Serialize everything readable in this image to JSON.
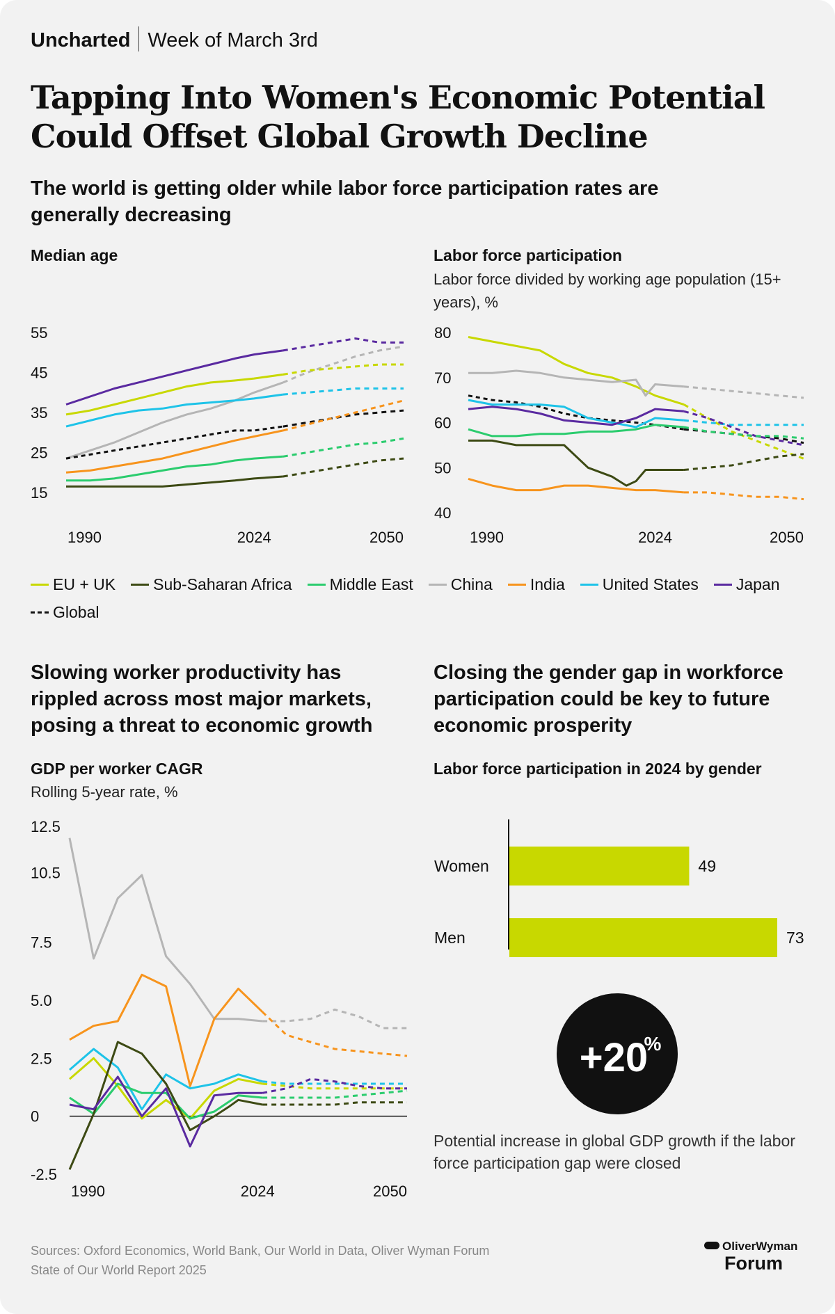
{
  "header": {
    "brand": "Uncharted",
    "week": "Week of March 3rd"
  },
  "title": "Tapping Into Women's Economic Potential Could Offset Global Growth Decline",
  "section1": {
    "subtitle": "The world is getting older while labor force participation rates are generally decreasing"
  },
  "section2": {
    "subtitle": "Slowing worker productivity has rippled across most major markets, posing a threat to economic growth"
  },
  "section3": {
    "subtitle": "Closing the gender gap in workforce participation could be key to future economic prosperity",
    "big_stat": "+20%",
    "big_stat_num": "+20",
    "big_stat_unit": "%",
    "stat_caption": "Potential increase in global GDP growth if the labor force participation gap were closed"
  },
  "legend": [
    {
      "name": "EU + UK",
      "color": "#c8d800",
      "dashed": false
    },
    {
      "name": "Sub-Saharan Africa",
      "color": "#3d4a14",
      "dashed": false
    },
    {
      "name": "Middle East",
      "color": "#2bcc6e",
      "dashed": false
    },
    {
      "name": "China",
      "color": "#b5b5b5",
      "dashed": false
    },
    {
      "name": "India",
      "color": "#f7941d",
      "dashed": false
    },
    {
      "name": "United States",
      "color": "#1ec3e8",
      "dashed": false
    },
    {
      "name": "Japan",
      "color": "#5a2aa0",
      "dashed": false
    },
    {
      "name": "Global",
      "color": "#111111",
      "dashed": true
    }
  ],
  "sources": {
    "line1": "Sources: Oxford Economics, World Bank, Our World in Data, Oliver Wyman Forum",
    "line2": "State of Our World Report 2025"
  },
  "logo": {
    "line1": "OliverWyman",
    "line2": "Forum"
  },
  "chart_data": [
    {
      "id": "median_age",
      "type": "line",
      "title": "Median age",
      "subtitle": "",
      "ylim": [
        15,
        55
      ],
      "yticks": [
        15,
        25,
        35,
        45,
        55
      ],
      "xlim": [
        1985,
        2055
      ],
      "xticks": [
        1990,
        2024,
        2050
      ],
      "forecast_from": 2030,
      "series": [
        {
          "name": "Japan",
          "color": "#5a2aa0",
          "x": [
            1985,
            1990,
            1995,
            2000,
            2005,
            2010,
            2015,
            2020,
            2024,
            2030,
            2035,
            2040,
            2045,
            2050,
            2055
          ],
          "values": [
            37,
            39,
            41,
            42.5,
            44,
            45.5,
            47,
            48.5,
            49.5,
            50.5,
            51.5,
            52.5,
            53.5,
            52.5,
            52.5
          ]
        },
        {
          "name": "China",
          "color": "#b5b5b5",
          "x": [
            1985,
            1990,
            1995,
            2000,
            2005,
            2010,
            2015,
            2020,
            2024,
            2030,
            2035,
            2040,
            2045,
            2050,
            2055
          ],
          "values": [
            23.5,
            25.5,
            27.5,
            30,
            32.5,
            34.5,
            36,
            38,
            40,
            42.5,
            45,
            47,
            49,
            50.5,
            51.5
          ]
        },
        {
          "name": "EU + UK",
          "color": "#c8d800",
          "x": [
            1985,
            1990,
            1995,
            2000,
            2005,
            2010,
            2015,
            2020,
            2024,
            2030,
            2035,
            2040,
            2045,
            2050,
            2055
          ],
          "values": [
            34.5,
            35.5,
            37,
            38.5,
            40,
            41.5,
            42.5,
            43,
            43.5,
            44.5,
            45.5,
            46,
            46.5,
            47,
            47
          ]
        },
        {
          "name": "United States",
          "color": "#1ec3e8",
          "x": [
            1985,
            1990,
            1995,
            2000,
            2005,
            2010,
            2015,
            2020,
            2024,
            2030,
            2035,
            2040,
            2045,
            2050,
            2055
          ],
          "values": [
            31.5,
            33,
            34.5,
            35.5,
            36,
            37,
            37.5,
            38,
            38.5,
            39.5,
            40,
            40.5,
            41,
            41,
            41
          ]
        },
        {
          "name": "Global",
          "color": "#111111",
          "x": [
            1985,
            1990,
            1995,
            2000,
            2005,
            2010,
            2015,
            2020,
            2024,
            2030,
            2035,
            2040,
            2045,
            2050,
            2055
          ],
          "values": [
            23.5,
            24.5,
            25.5,
            26.5,
            27.5,
            28.5,
            29.5,
            30.5,
            30.5,
            31.5,
            32.5,
            33.5,
            34.5,
            35,
            35.5
          ]
        },
        {
          "name": "India",
          "color": "#f7941d",
          "x": [
            1985,
            1990,
            1995,
            2000,
            2005,
            2010,
            2015,
            2020,
            2024,
            2030,
            2035,
            2040,
            2045,
            2050,
            2055
          ],
          "values": [
            20,
            20.5,
            21.5,
            22.5,
            23.5,
            25,
            26.5,
            28,
            29,
            30.5,
            32,
            33.5,
            35,
            36.5,
            38
          ]
        },
        {
          "name": "Middle East",
          "color": "#2bcc6e",
          "x": [
            1985,
            1990,
            1995,
            2000,
            2005,
            2010,
            2015,
            2020,
            2024,
            2030,
            2035,
            2040,
            2045,
            2050,
            2055
          ],
          "values": [
            18,
            18,
            18.5,
            19.5,
            20.5,
            21.5,
            22,
            23,
            23.5,
            24,
            25,
            26,
            27,
            27.5,
            28.5
          ]
        },
        {
          "name": "Sub-Saharan Africa",
          "color": "#3d4a14",
          "x": [
            1985,
            1990,
            1995,
            2000,
            2005,
            2010,
            2015,
            2020,
            2024,
            2030,
            2035,
            2040,
            2045,
            2050,
            2055
          ],
          "values": [
            16.5,
            16.5,
            16.5,
            16.5,
            16.5,
            17,
            17.5,
            18,
            18.5,
            19,
            20,
            21,
            22,
            23,
            23.5
          ]
        }
      ]
    },
    {
      "id": "labor_force_participation",
      "type": "line",
      "title": "Labor force participation",
      "subtitle": "Labor force divided by working age population (15+ years), %",
      "ylim": [
        40,
        80
      ],
      "yticks": [
        40,
        50,
        60,
        70,
        80
      ],
      "xlim": [
        1985,
        2055
      ],
      "xticks": [
        1990,
        2024,
        2050
      ],
      "forecast_from": 2030,
      "series": [
        {
          "name": "EU + UK",
          "color": "#c8d800",
          "x": [
            1985,
            1990,
            1995,
            2000,
            2005,
            2010,
            2015,
            2020,
            2024,
            2030,
            2035,
            2040,
            2045,
            2050,
            2055
          ],
          "values": [
            79,
            78,
            77,
            76,
            73,
            71,
            70,
            68,
            66,
            64,
            61,
            58,
            56,
            54,
            52
          ]
        },
        {
          "name": "China",
          "color": "#b5b5b5",
          "x": [
            1985,
            1990,
            1995,
            2000,
            2005,
            2010,
            2015,
            2020,
            2022,
            2024,
            2030,
            2035,
            2040,
            2045,
            2050,
            2055
          ],
          "values": [
            71,
            71,
            71.5,
            71,
            70,
            69.5,
            69,
            69.5,
            66,
            68.5,
            68,
            67.5,
            67,
            66.5,
            66,
            65.5
          ]
        },
        {
          "name": "Global",
          "color": "#111111",
          "x": [
            1985,
            1990,
            1995,
            2000,
            2005,
            2010,
            2015,
            2020,
            2024,
            2030,
            2035,
            2040,
            2045,
            2050,
            2055
          ],
          "values": [
            66,
            65,
            64.5,
            63.5,
            62,
            61,
            60.5,
            60,
            59.5,
            58.5,
            58,
            57.5,
            57,
            56.5,
            55.5
          ]
        },
        {
          "name": "United States",
          "color": "#1ec3e8",
          "x": [
            1985,
            1990,
            1995,
            2000,
            2005,
            2010,
            2015,
            2020,
            2024,
            2030,
            2035,
            2040,
            2045,
            2050,
            2055
          ],
          "values": [
            65,
            64,
            64,
            64,
            63.5,
            61,
            60,
            59,
            61,
            60.5,
            60,
            59.5,
            59.5,
            59.5,
            59.5
          ]
        },
        {
          "name": "Japan",
          "color": "#5a2aa0",
          "x": [
            1985,
            1990,
            1995,
            2000,
            2005,
            2010,
            2015,
            2020,
            2024,
            2030,
            2035,
            2040,
            2045,
            2050,
            2055
          ],
          "values": [
            63,
            63.5,
            63,
            62,
            60.5,
            60,
            59.5,
            61,
            63,
            62.5,
            61,
            59,
            57,
            56,
            55
          ]
        },
        {
          "name": "Middle East",
          "color": "#2bcc6e",
          "x": [
            1985,
            1990,
            1995,
            2000,
            2005,
            2010,
            2015,
            2020,
            2024,
            2030,
            2035,
            2040,
            2045,
            2050,
            2055
          ],
          "values": [
            58.5,
            57,
            57,
            57.5,
            57.5,
            58,
            58,
            58.5,
            59.5,
            59,
            58,
            57.5,
            57,
            57,
            56.5
          ]
        },
        {
          "name": "Sub-Saharan Africa",
          "color": "#3d4a14",
          "x": [
            1985,
            1990,
            1995,
            2000,
            2005,
            2010,
            2015,
            2018,
            2020,
            2022,
            2024,
            2030,
            2035,
            2040,
            2045,
            2050,
            2055
          ],
          "values": [
            56,
            56,
            55,
            55,
            55,
            50,
            48,
            46,
            47,
            49.5,
            49.5,
            49.5,
            50,
            50.5,
            51.5,
            52.5,
            53
          ]
        },
        {
          "name": "India",
          "color": "#f7941d",
          "x": [
            1985,
            1990,
            1995,
            2000,
            2005,
            2010,
            2015,
            2020,
            2024,
            2030,
            2035,
            2040,
            2045,
            2050,
            2055
          ],
          "values": [
            47.5,
            46,
            45,
            45,
            46,
            46,
            45.5,
            45,
            45,
            44.5,
            44.5,
            44,
            43.5,
            43.5,
            43
          ]
        }
      ]
    },
    {
      "id": "gdp_per_worker_cagr",
      "type": "line",
      "title": "GDP per worker CAGR",
      "subtitle": "Rolling 5-year rate, %",
      "ylim": [
        -2.5,
        12.5
      ],
      "yticks": [
        -2.5,
        0,
        2.5,
        5.0,
        7.5,
        10.5,
        12.5
      ],
      "ytick_labels": [
        "-2.5",
        "0",
        "2.5",
        "5.0",
        "7.5",
        "10.5",
        "12.5"
      ],
      "xlim": [
        1985,
        2055
      ],
      "xticks": [
        1990,
        2024,
        2050
      ],
      "forecast_from": 2025,
      "series": [
        {
          "name": "China",
          "color": "#b5b5b5",
          "x": [
            1985,
            1990,
            1995,
            2000,
            2005,
            2010,
            2015,
            2020,
            2025,
            2030,
            2035,
            2040,
            2045,
            2050,
            2055
          ],
          "values": [
            12,
            6.8,
            9.4,
            10.4,
            6.9,
            5.7,
            4.2,
            4.2,
            4.1,
            4.1,
            4.2,
            4.6,
            4.3,
            3.8,
            3.8
          ]
        },
        {
          "name": "India",
          "color": "#f7941d",
          "x": [
            1985,
            1990,
            1995,
            2000,
            2005,
            2010,
            2015,
            2020,
            2025,
            2030,
            2035,
            2040,
            2045,
            2050,
            2055
          ],
          "values": [
            3.3,
            3.9,
            4.1,
            6.1,
            5.6,
            1.3,
            4.2,
            5.5,
            4.5,
            3.5,
            3.2,
            2.9,
            2.8,
            2.7,
            2.6
          ]
        },
        {
          "name": "United States",
          "color": "#1ec3e8",
          "x": [
            1985,
            1990,
            1995,
            2000,
            2005,
            2010,
            2015,
            2020,
            2025,
            2030,
            2035,
            2040,
            2045,
            2050,
            2055
          ],
          "values": [
            2.0,
            2.9,
            2.1,
            0.3,
            1.8,
            1.2,
            1.4,
            1.8,
            1.5,
            1.4,
            1.4,
            1.4,
            1.4,
            1.4,
            1.4
          ]
        },
        {
          "name": "EU + UK",
          "color": "#c8d800",
          "x": [
            1985,
            1990,
            1995,
            2000,
            2005,
            2010,
            2015,
            2020,
            2025,
            2030,
            2035,
            2040,
            2045,
            2050,
            2055
          ],
          "values": [
            1.6,
            2.5,
            1.3,
            -0.1,
            0.7,
            -0.1,
            1.1,
            1.6,
            1.4,
            1.3,
            1.2,
            1.2,
            1.2,
            1.2,
            1.2
          ]
        },
        {
          "name": "Middle East",
          "color": "#2bcc6e",
          "x": [
            1985,
            1990,
            1995,
            2000,
            2005,
            2010,
            2015,
            2020,
            2025,
            2030,
            2035,
            2040,
            2045,
            2050,
            2055
          ],
          "values": [
            0.8,
            0.1,
            1.4,
            1.0,
            1.0,
            -0.1,
            0.2,
            0.9,
            0.8,
            0.8,
            0.8,
            0.8,
            0.9,
            1.0,
            1.1
          ]
        },
        {
          "name": "Sub-Saharan Africa",
          "color": "#3d4a14",
          "x": [
            1985,
            1990,
            1995,
            2000,
            2005,
            2010,
            2015,
            2018,
            2020,
            2025,
            2030,
            2035,
            2040,
            2045,
            2050,
            2055
          ],
          "values": [
            -2.3,
            0.1,
            3.2,
            2.7,
            1.4,
            -0.6,
            0.0,
            0.4,
            0.7,
            0.5,
            0.5,
            0.5,
            0.5,
            0.6,
            0.6,
            0.6
          ]
        },
        {
          "name": "Japan",
          "color": "#5a2aa0",
          "x": [
            1985,
            1990,
            1995,
            2000,
            2005,
            2010,
            2015,
            2020,
            2025,
            2030,
            2035,
            2040,
            2045,
            2050,
            2055
          ],
          "values": [
            0.5,
            0.3,
            1.7,
            0.0,
            1.2,
            -1.3,
            0.9,
            1.0,
            1.0,
            1.2,
            1.6,
            1.5,
            1.3,
            1.2,
            1.2
          ]
        }
      ]
    },
    {
      "id": "lfp_by_gender_2024",
      "type": "bar",
      "orientation": "horizontal",
      "title": "Labor force participation in 2024 by gender",
      "categories": [
        "Women",
        "Men"
      ],
      "values": [
        49,
        73
      ],
      "value_labels": [
        "49",
        "73"
      ],
      "color": "#c8d800",
      "xlim": [
        0,
        73
      ]
    }
  ]
}
